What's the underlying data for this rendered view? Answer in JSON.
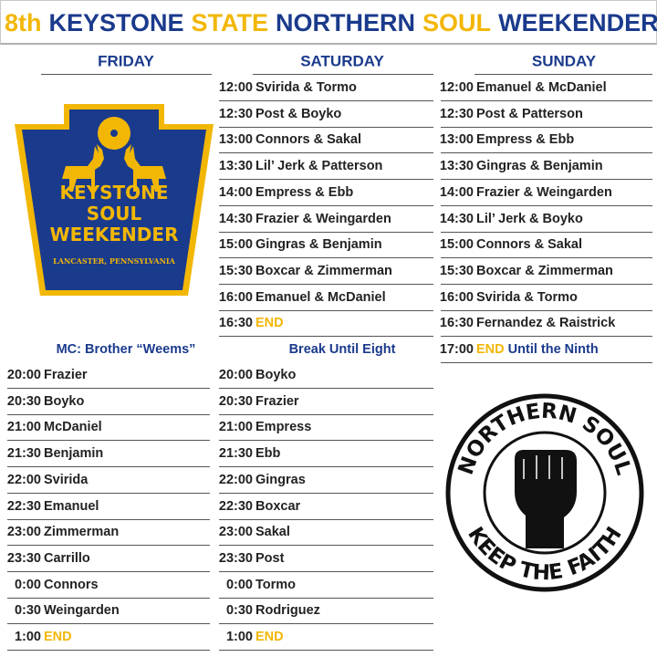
{
  "title": [
    {
      "text": "8th",
      "color": "#f2b705"
    },
    {
      "text": "KEYSTONE",
      "color": "#1a3a8c"
    },
    {
      "text": "STATE",
      "color": "#f2b705"
    },
    {
      "text": "NORTHERN",
      "color": "#1a3a8c"
    },
    {
      "text": "SOUL",
      "color": "#f2b705"
    },
    {
      "text": "WEEKENDER",
      "color": "#1a3a8c"
    }
  ],
  "logo": {
    "lines": [
      "KEYSTONE",
      "SOUL",
      "WEEKENDER"
    ],
    "place": "LANCASTER, PENNSYLVANIA"
  },
  "badge": {
    "top": "NORTHERN SOUL",
    "bottom": "KEEP THE FAITH"
  },
  "columns": [
    {
      "day": "FRIDAY",
      "sections": [
        {
          "note": "MC: Brother “Weems”",
          "slots": [
            {
              "time": "20:00",
              "act": "Frazier"
            },
            {
              "time": "20:30",
              "act": "Boyko"
            },
            {
              "time": "21:00",
              "act": "McDaniel"
            },
            {
              "time": "21:30",
              "act": "Benjamin"
            },
            {
              "time": "22:00",
              "act": "Svirida"
            },
            {
              "time": "22:30",
              "act": "Emanuel"
            },
            {
              "time": "23:00",
              "act": "Zimmerman"
            },
            {
              "time": "23:30",
              "act": "Carrillo"
            },
            {
              "time": "0:00",
              "act": "Connors"
            },
            {
              "time": "0:30",
              "act": "Weingarden"
            },
            {
              "time": "1:00",
              "end": "END"
            }
          ]
        }
      ]
    },
    {
      "day": "SATURDAY",
      "sections": [
        {
          "slots": [
            {
              "time": "12:00",
              "act": "Svirida & Tormo"
            },
            {
              "time": "12:30",
              "act": "Post & Boyko"
            },
            {
              "time": "13:00",
              "act": "Connors & Sakal"
            },
            {
              "time": "13:30",
              "act": "Lil’ Jerk & Patterson"
            },
            {
              "time": "14:00",
              "act": "Empress & Ebb"
            },
            {
              "time": "14:30",
              "act": "Frazier & Weingarden"
            },
            {
              "time": "15:00",
              "act": "Gingras & Benjamin"
            },
            {
              "time": "15:30",
              "act": "Boxcar & Zimmerman"
            },
            {
              "time": "16:00",
              "act": "Emanuel & McDaniel"
            },
            {
              "time": "16:30",
              "end": "END"
            }
          ]
        },
        {
          "note": "Break Until Eight",
          "slots": [
            {
              "time": "20:00",
              "act": "Boyko"
            },
            {
              "time": "20:30",
              "act": "Frazier"
            },
            {
              "time": "21:00",
              "act": "Empress"
            },
            {
              "time": "21:30",
              "act": "Ebb"
            },
            {
              "time": "22:00",
              "act": "Gingras"
            },
            {
              "time": "22:30",
              "act": "Boxcar"
            },
            {
              "time": "23:00",
              "act": "Sakal"
            },
            {
              "time": "23:30",
              "act": "Post"
            },
            {
              "time": "0:00",
              "act": "Tormo"
            },
            {
              "time": "0:30",
              "act": "Rodriguez"
            },
            {
              "time": "1:00",
              "end": "END"
            }
          ]
        }
      ]
    },
    {
      "day": "SUNDAY",
      "sections": [
        {
          "slots": [
            {
              "time": "12:00",
              "act": "Emanuel & McDaniel"
            },
            {
              "time": "12:30",
              "act": "Post & Patterson"
            },
            {
              "time": "13:00",
              "act": "Empress & Ebb"
            },
            {
              "time": "13:30",
              "act": "Gingras & Benjamin"
            },
            {
              "time": "14:00",
              "act": "Frazier & Weingarden"
            },
            {
              "time": "14:30",
              "act": "Lil’ Jerk & Boyko"
            },
            {
              "time": "15:00",
              "act": "Connors & Sakal"
            },
            {
              "time": "15:30",
              "act": "Boxcar & Zimmerman"
            },
            {
              "time": "16:00",
              "act": "Svirida & Tormo"
            },
            {
              "time": "16:30",
              "act": "Fernandez & Raistrick"
            },
            {
              "time": "17:00",
              "end": "END",
              "note": "Until the Ninth"
            }
          ]
        }
      ]
    }
  ]
}
